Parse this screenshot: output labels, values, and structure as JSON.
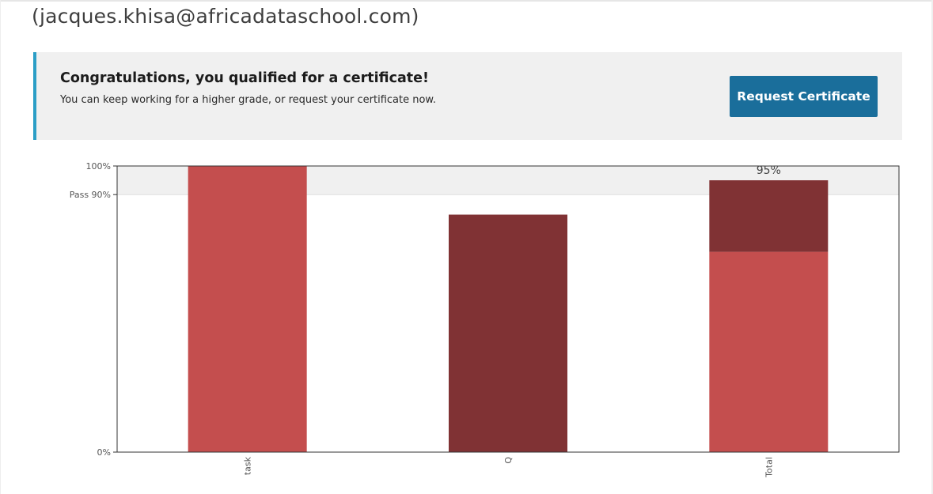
{
  "header": {
    "email": "(jacques.khisa@africadataschool.com)"
  },
  "banner": {
    "heading": "Congratulations, you qualified for a certificate!",
    "message": "You can keep working for a higher grade, or request your certificate now.",
    "button_label": "Request Certificate",
    "accent_color": "#2b9ec6",
    "button_color": "#1a6e9b"
  },
  "chart_data": {
    "type": "bar",
    "stacked": true,
    "categories": [
      "task",
      "Q",
      "Total"
    ],
    "series": [
      {
        "values": [
          100,
          0,
          70
        ],
        "color": "#c44e4e"
      },
      {
        "values": [
          0,
          83,
          25
        ],
        "color": "#803234"
      }
    ],
    "ylim": [
      0,
      100
    ],
    "y_ticks": [
      {
        "value": 0,
        "label": "0%"
      },
      {
        "value": 90,
        "label": "Pass 90%"
      },
      {
        "value": 100,
        "label": "100%"
      }
    ],
    "pass_band": {
      "from": 90,
      "to": 100,
      "color": "#f0f0f0"
    },
    "annotations": [
      {
        "category": "Total",
        "text": "95%"
      }
    ]
  }
}
